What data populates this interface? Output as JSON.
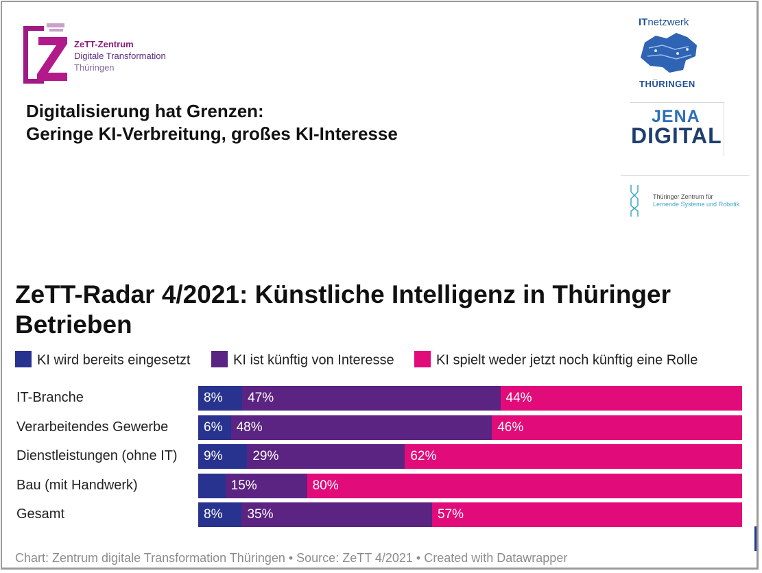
{
  "logos": {
    "zett": {
      "line1": "ZeTT-Zentrum",
      "line2": "Digitale Transformation",
      "line3": "Thüringen"
    },
    "itnetzwerk": {
      "top_bold": "IT",
      "top_rest": "netzwerk",
      "bottom": "THÜRINGEN"
    },
    "jena": {
      "line1": "JENA",
      "line2": "DIGITAL"
    },
    "tzls": {
      "line1": "Thüringer Zentrum für",
      "line2": "Lernende Systeme und Robotik"
    }
  },
  "headline": {
    "line1": "Digitalisierung hat Grenzen:",
    "line2": "Geringe KI-Verbreitung, großes KI-Interesse"
  },
  "colors": {
    "s1": "#27338e",
    "s2": "#5b2482",
    "s3": "#e20b7a"
  },
  "chart_data": {
    "type": "bar",
    "orientation": "horizontal",
    "stacked": true,
    "title": "ZeTT-Radar 4/2021: Künstliche Intelligenz in Thüringer Betrieben",
    "categories": [
      "IT-Branche",
      "Verarbeitendes Gewerbe",
      "Dienstleistungen (ohne IT)",
      "Bau (mit Handwerk)",
      "Gesamt"
    ],
    "series": [
      {
        "name": "KI wird bereits eingesetzt",
        "values": [
          8,
          6,
          9,
          5,
          8
        ],
        "labels": [
          "8%",
          "6%",
          "9%",
          "",
          "8%"
        ]
      },
      {
        "name": "KI ist künftig von Interesse",
        "values": [
          47,
          48,
          29,
          15,
          35
        ],
        "labels": [
          "47%",
          "48%",
          "29%",
          "15%",
          "35%"
        ]
      },
      {
        "name": "KI spielt weder jetzt noch künftig eine Rolle",
        "values": [
          44,
          46,
          62,
          80,
          57
        ],
        "labels": [
          "44%",
          "46%",
          "62%",
          "80%",
          "57%"
        ]
      }
    ],
    "legend_position": "top",
    "source": "Chart: Zentrum digitale Transformation Thüringen • Source: ZeTT 4/2021 • Created with Datawrapper"
  }
}
